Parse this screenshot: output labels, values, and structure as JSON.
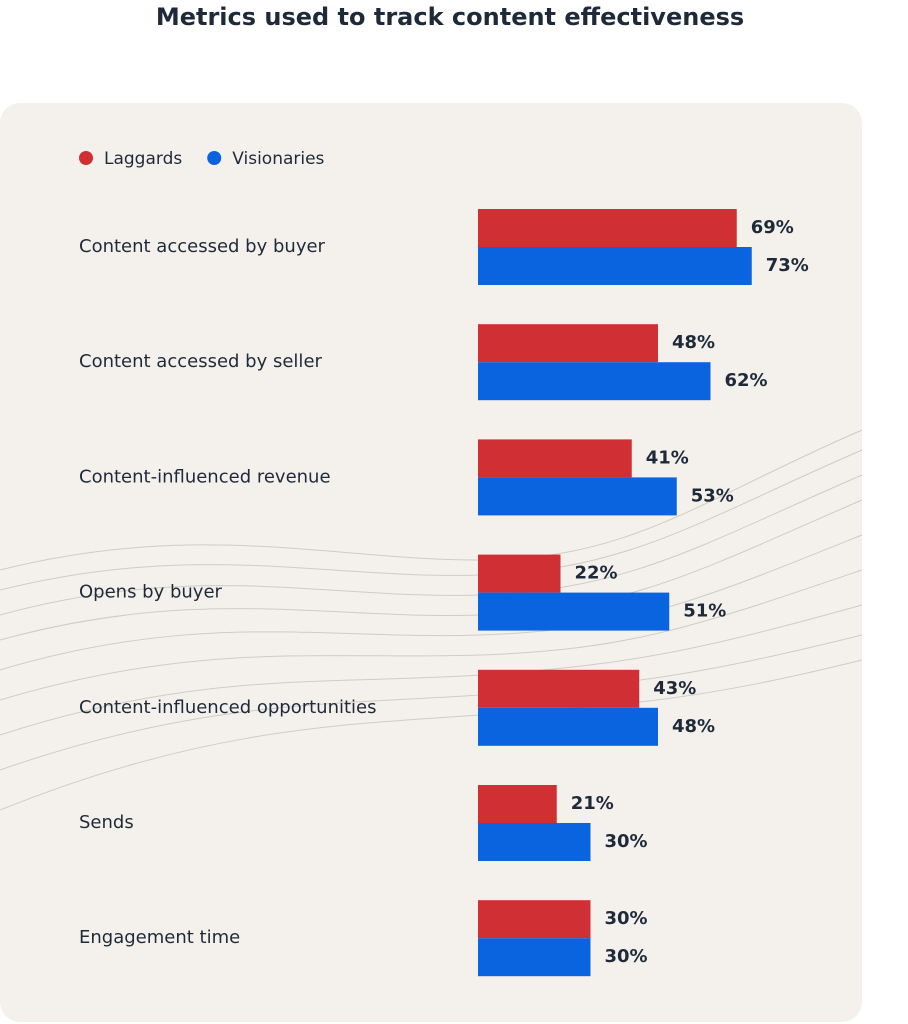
{
  "chart_data": {
    "type": "hbar",
    "title": "Metrics used to track content effectiveness",
    "categories": [
      "Content accessed by buyer",
      "Content accessed by seller",
      "Content-influenced revenue",
      "Opens by buyer",
      "Content-influenced opportunities",
      "Sends",
      "Engagement time"
    ],
    "series": [
      {
        "name": "Laggards",
        "color": "#d03033",
        "values": [
          69,
          48,
          41,
          22,
          43,
          21,
          30
        ],
        "value_labels": [
          "69%",
          "48%",
          "41%",
          "22%",
          "43%",
          "21%",
          "30%"
        ]
      },
      {
        "name": "Visionaries",
        "color": "#0a64e0",
        "values": [
          73,
          62,
          53,
          51,
          48,
          30,
          30
        ],
        "value_labels": [
          "73%",
          "62%",
          "53%",
          "51%",
          "48%",
          "30%",
          "30%"
        ]
      }
    ]
  }
}
